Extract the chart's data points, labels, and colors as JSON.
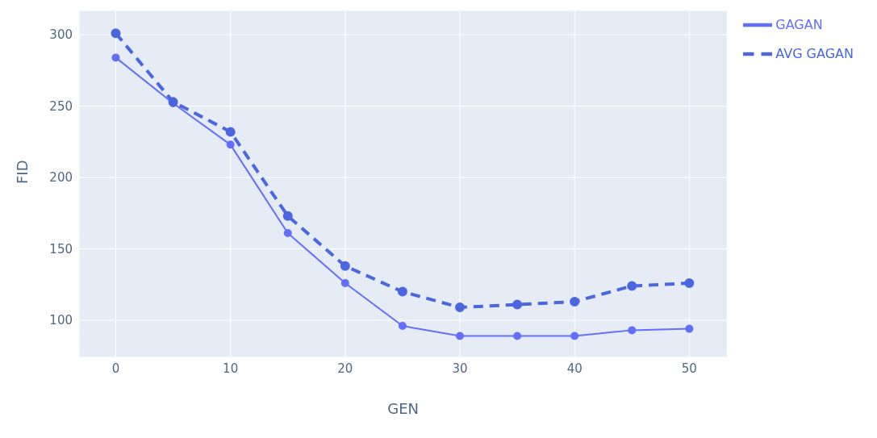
{
  "chart_data": {
    "type": "line",
    "xlabel": "GEN",
    "ylabel": "FID",
    "x": [
      0,
      5,
      10,
      15,
      20,
      25,
      30,
      35,
      40,
      45,
      50
    ],
    "series": [
      {
        "name": "GAGAN",
        "color": "#636efa",
        "line_style": "solid",
        "values": [
          284,
          252,
          223,
          161,
          126,
          96,
          89,
          89,
          89,
          93,
          94
        ]
      },
      {
        "name": "AVG GAGAN",
        "color": "#4a66e0",
        "line_style": "dashed",
        "values": [
          301,
          253,
          232,
          173,
          138,
          120,
          109,
          111,
          113,
          124,
          126
        ]
      }
    ],
    "xlim": [
      -3.2,
      53.3
    ],
    "ylim": [
      74,
      317
    ],
    "xticks": [
      0,
      10,
      20,
      30,
      40,
      50
    ],
    "yticks": [
      100,
      150,
      200,
      250,
      300
    ],
    "grid": true,
    "legend": "top right",
    "marker": "circle"
  }
}
